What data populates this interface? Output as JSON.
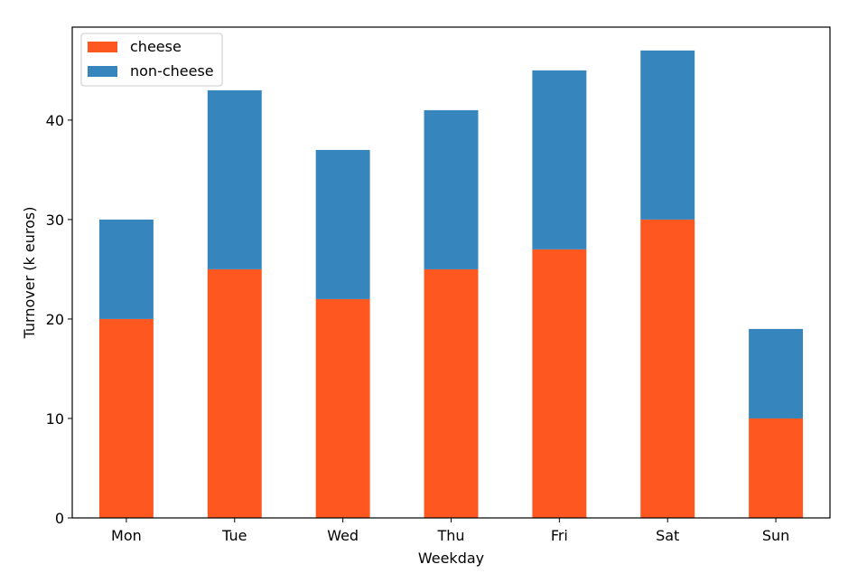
{
  "chart_data": {
    "type": "bar",
    "stacked": true,
    "title": "",
    "xlabel": "Weekday",
    "ylabel": "Turnover (k euros)",
    "categories": [
      "Mon",
      "Tue",
      "Wed",
      "Thu",
      "Fri",
      "Sat",
      "Sun"
    ],
    "series": [
      {
        "name": "cheese",
        "color": "#fe5720",
        "values": [
          20,
          25,
          22,
          25,
          27,
          30,
          10
        ]
      },
      {
        "name": "non-cheese",
        "color": "#3686bd",
        "values": [
          10,
          18,
          15,
          16,
          18,
          17,
          9
        ]
      }
    ],
    "ylim": [
      0,
      49.35
    ],
    "yticks": [
      0,
      10,
      20,
      30,
      40
    ],
    "grid": false,
    "legend": "top-left"
  }
}
